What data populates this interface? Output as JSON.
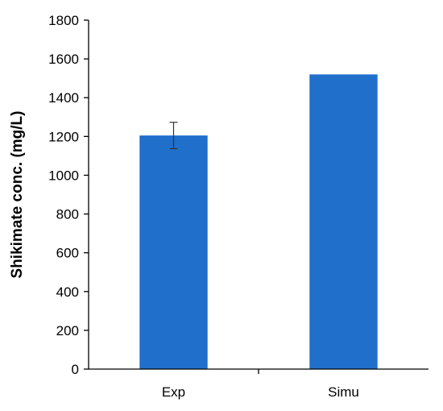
{
  "chart_data": {
    "type": "bar",
    "categories": [
      "Exp",
      "Simu"
    ],
    "values": [
      1205,
      1520
    ],
    "error_bars": [
      68,
      null
    ],
    "title": "",
    "xlabel": "",
    "ylabel": "Shikimate conc. (mg/L)",
    "ylim": [
      0,
      1800
    ],
    "y_ticks": [
      0,
      200,
      400,
      600,
      800,
      1000,
      1200,
      1400,
      1600,
      1800
    ],
    "grid": false,
    "legend": "none",
    "bar_color": "#1F6FCB"
  }
}
